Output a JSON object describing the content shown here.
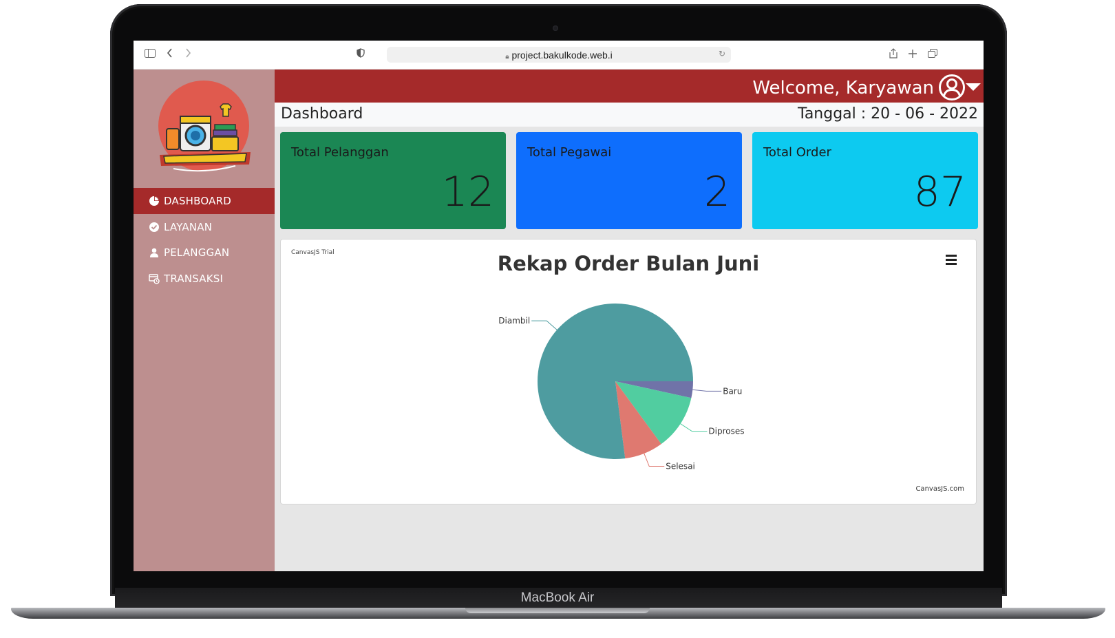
{
  "device": {
    "brand": "MacBook Air"
  },
  "browser": {
    "url": "project.bakulkode.web.i"
  },
  "sidebar": {
    "items": [
      {
        "label": "DASHBOARD",
        "icon": "pie-chart-icon",
        "active": true
      },
      {
        "label": "LAYANAN",
        "icon": "check-circle-icon",
        "active": false
      },
      {
        "label": "PELANGGAN",
        "icon": "user-icon",
        "active": false
      },
      {
        "label": "TRANSAKSI",
        "icon": "transaction-icon",
        "active": false
      }
    ]
  },
  "header": {
    "welcome": "Welcome, Karyawan"
  },
  "page": {
    "title": "Dashboard",
    "date": "Tanggal : 20 - 06 - 2022"
  },
  "stats": [
    {
      "label": "Total Pelanggan",
      "value": "12",
      "color": "#1b8754"
    },
    {
      "label": "Total Pegawai",
      "value": "2",
      "color": "#0e6efd"
    },
    {
      "label": "Total Order",
      "value": "87",
      "color": "#0dcaf0"
    }
  ],
  "chart": {
    "trial": "CanvasJS Trial",
    "credit": "CanvasJS.com"
  },
  "chart_data": {
    "type": "pie",
    "title": "Rekap Order Bulan Juni",
    "labels": [
      "Baru",
      "Diproses",
      "Selesai",
      "Diambil"
    ],
    "values": [
      3,
      10,
      7,
      67
    ],
    "colors": [
      "#7073a8",
      "#51cda0",
      "#df7970",
      "#4e9ca0"
    ]
  }
}
